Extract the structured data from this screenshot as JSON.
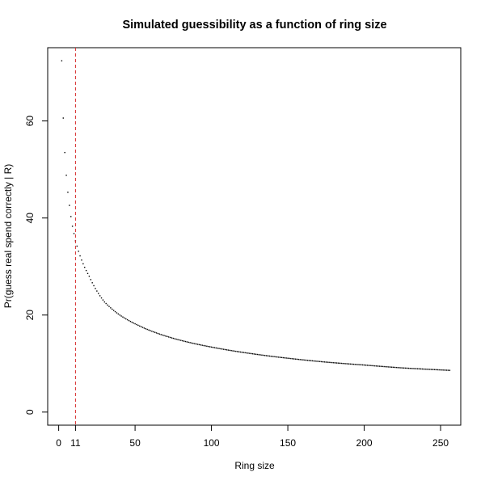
{
  "chart_data": {
    "type": "scatter",
    "title": "Simulated guessibility as a function of ring size",
    "xlabel": "Ring size",
    "ylabel": "Pr(guess real spend correctly | R)",
    "xlim": [
      -7.2,
      263.2
    ],
    "ylim": [
      -2.7,
      75.1
    ],
    "x_ticks": [
      0,
      11,
      50,
      100,
      150,
      200,
      250
    ],
    "y_ticks": [
      0,
      20,
      40,
      60
    ],
    "x_range_of_points": [
      2,
      256
    ],
    "curve_shape": "y ≈ 138 / R^0.5, declining from about 72.4 at R = 2 to about 8.6 at R = 256",
    "anchor_points": [
      {
        "x": 2,
        "y": 72.4
      },
      {
        "x": 3,
        "y": 60.6
      },
      {
        "x": 4,
        "y": 53.5
      },
      {
        "x": 5,
        "y": 48.8
      },
      {
        "x": 6,
        "y": 45.3
      },
      {
        "x": 7,
        "y": 42.6
      },
      {
        "x": 8,
        "y": 40.3
      },
      {
        "x": 9,
        "y": 38.3
      },
      {
        "x": 10,
        "y": 36.8
      },
      {
        "x": 11,
        "y": 35.3
      },
      {
        "x": 12,
        "y": 34.2
      },
      {
        "x": 20,
        "y": 28.0
      },
      {
        "x": 30,
        "y": 22.7
      },
      {
        "x": 40,
        "y": 20.0
      },
      {
        "x": 50,
        "y": 18.2
      },
      {
        "x": 75,
        "y": 15.2
      },
      {
        "x": 100,
        "y": 13.4
      },
      {
        "x": 125,
        "y": 12.1
      },
      {
        "x": 150,
        "y": 11.1
      },
      {
        "x": 175,
        "y": 10.3
      },
      {
        "x": 200,
        "y": 9.7
      },
      {
        "x": 225,
        "y": 9.1
      },
      {
        "x": 256,
        "y": 8.6
      }
    ],
    "vline": {
      "x": 11,
      "color": "#d62728",
      "style": "dashed"
    },
    "point_color": "#000000",
    "grid": false,
    "legend": "none"
  }
}
